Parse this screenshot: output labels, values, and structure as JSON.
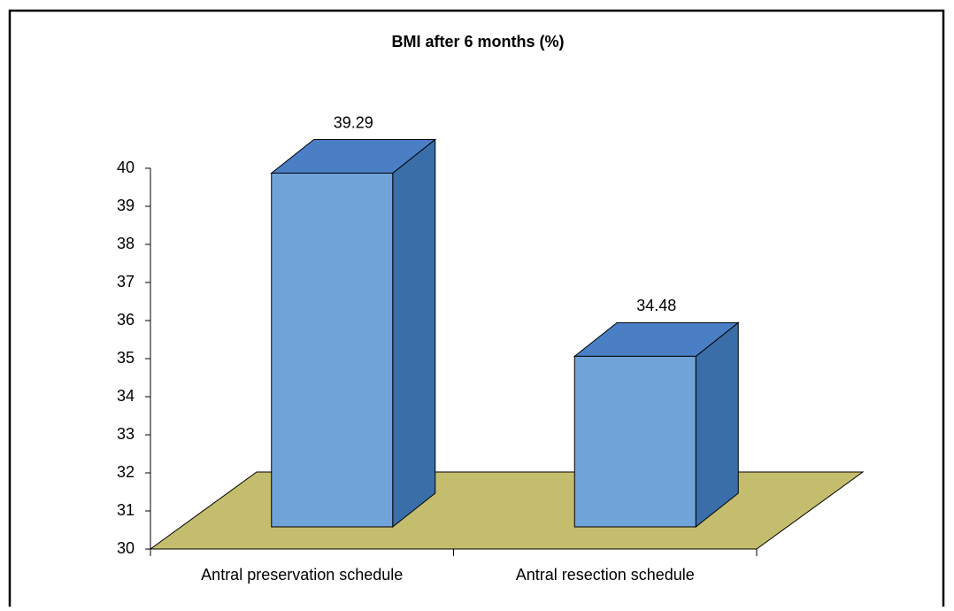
{
  "chart_data": {
    "type": "bar3d",
    "title": "BMI after 6 months (%)",
    "categories": [
      "Antral preservation schedule",
      "Antral resection schedule"
    ],
    "values": [
      39.29,
      34.48
    ],
    "color": "#70a4d8",
    "ylim": [
      30,
      40
    ],
    "yticks": [
      30,
      31,
      32,
      33,
      34,
      35,
      36,
      37,
      38,
      39,
      40
    ]
  }
}
